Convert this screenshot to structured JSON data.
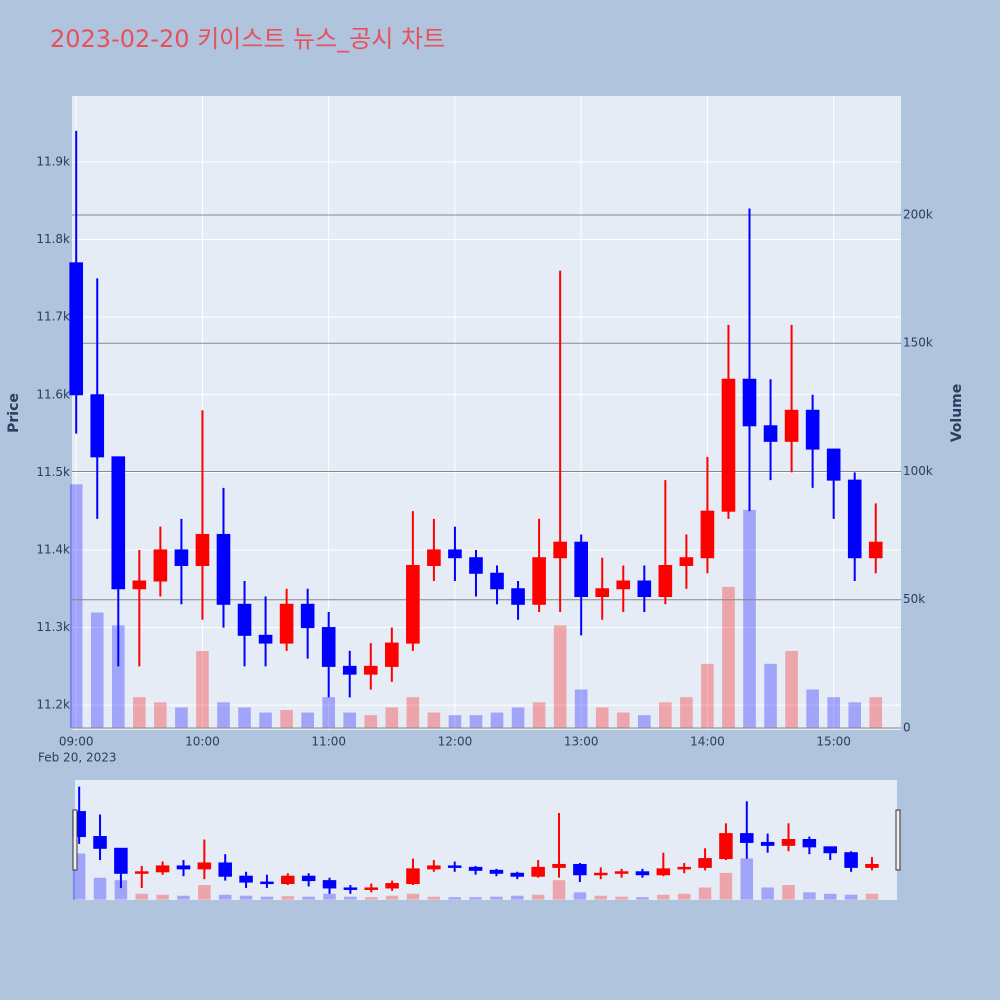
{
  "chart_data": {
    "type": "candlestick",
    "title": "2023-02-20 키이스트 뉴스_공시 차트",
    "x_subtitle": "Feb 20, 2023",
    "ylabel": "Price",
    "y2label": "Volume",
    "x": [
      "09:00",
      "09:10",
      "09:20",
      "09:30",
      "09:40",
      "09:50",
      "10:00",
      "10:10",
      "10:20",
      "10:30",
      "10:40",
      "10:50",
      "11:00",
      "11:10",
      "11:20",
      "11:30",
      "11:40",
      "11:50",
      "12:00",
      "12:10",
      "12:20",
      "12:30",
      "12:40",
      "12:50",
      "13:00",
      "13:10",
      "13:20",
      "13:30",
      "13:40",
      "13:50",
      "14:00",
      "14:10",
      "14:20",
      "14:30",
      "14:40",
      "14:50",
      "15:00",
      "15:10",
      "15:20"
    ],
    "open": [
      11770,
      11600,
      11520,
      11350,
      11360,
      11400,
      11380,
      11420,
      11330,
      11290,
      11280,
      11330,
      11300,
      11250,
      11240,
      11250,
      11280,
      11380,
      11400,
      11390,
      11370,
      11350,
      11330,
      11390,
      11410,
      11340,
      11350,
      11360,
      11340,
      11380,
      11390,
      11450,
      11620,
      11560,
      11540,
      11580,
      11530,
      11490,
      11390
    ],
    "high": [
      11940,
      11750,
      11520,
      11400,
      11430,
      11440,
      11580,
      11480,
      11360,
      11340,
      11350,
      11350,
      11320,
      11270,
      11280,
      11300,
      11450,
      11440,
      11430,
      11400,
      11380,
      11360,
      11440,
      11760,
      11420,
      11390,
      11380,
      11380,
      11490,
      11420,
      11520,
      11690,
      11840,
      11620,
      11690,
      11600,
      11530,
      11500,
      11460
    ],
    "low": [
      11550,
      11440,
      11250,
      11250,
      11340,
      11330,
      11310,
      11300,
      11250,
      11250,
      11270,
      11260,
      11210,
      11210,
      11220,
      11230,
      11270,
      11360,
      11360,
      11340,
      11330,
      11310,
      11320,
      11320,
      11290,
      11310,
      11320,
      11320,
      11330,
      11350,
      11370,
      11440,
      11450,
      11490,
      11500,
      11480,
      11440,
      11360,
      11370
    ],
    "close": [
      11600,
      11520,
      11350,
      11360,
      11400,
      11380,
      11420,
      11330,
      11290,
      11280,
      11330,
      11300,
      11250,
      11240,
      11250,
      11280,
      11380,
      11400,
      11390,
      11370,
      11350,
      11330,
      11390,
      11410,
      11340,
      11350,
      11360,
      11340,
      11380,
      11390,
      11450,
      11620,
      11560,
      11540,
      11580,
      11530,
      11490,
      11390,
      11410
    ],
    "volume": [
      95000,
      45000,
      40000,
      12000,
      10000,
      8000,
      30000,
      10000,
      8000,
      6000,
      7000,
      6000,
      12000,
      6000,
      5000,
      8000,
      12000,
      6000,
      5000,
      5000,
      6000,
      8000,
      10000,
      40000,
      15000,
      8000,
      6000,
      5000,
      10000,
      12000,
      25000,
      55000,
      85000,
      25000,
      30000,
      15000,
      12000,
      10000,
      12000
    ],
    "increasing_color": "#ff0000",
    "decreasing_color": "#0000ff",
    "xlim": [
      "08:58",
      "15:32"
    ],
    "xticks": [
      "09:00",
      "10:00",
      "11:00",
      "12:00",
      "13:00",
      "14:00",
      "15:00"
    ],
    "ylim": [
      11168,
      11985
    ],
    "yticks": [
      {
        "value": 11200,
        "label": "11.2k"
      },
      {
        "value": 11300,
        "label": "11.3k"
      },
      {
        "value": 11400,
        "label": "11.4k"
      },
      {
        "value": 11500,
        "label": "11.5k"
      },
      {
        "value": 11600,
        "label": "11.6k"
      },
      {
        "value": 11700,
        "label": "11.7k"
      },
      {
        "value": 11800,
        "label": "11.8k"
      },
      {
        "value": 11900,
        "label": "11.9k"
      }
    ],
    "y2lim": [
      -800,
      246400
    ],
    "y2ticks": [
      0,
      {
        "value": 50000,
        "label": "50k"
      },
      {
        "value": 100000,
        "label": "100k"
      },
      {
        "value": 150000,
        "label": "150k"
      },
      {
        "value": 200000,
        "label": "200k"
      }
    ],
    "grid": true,
    "rangeslider": true
  }
}
